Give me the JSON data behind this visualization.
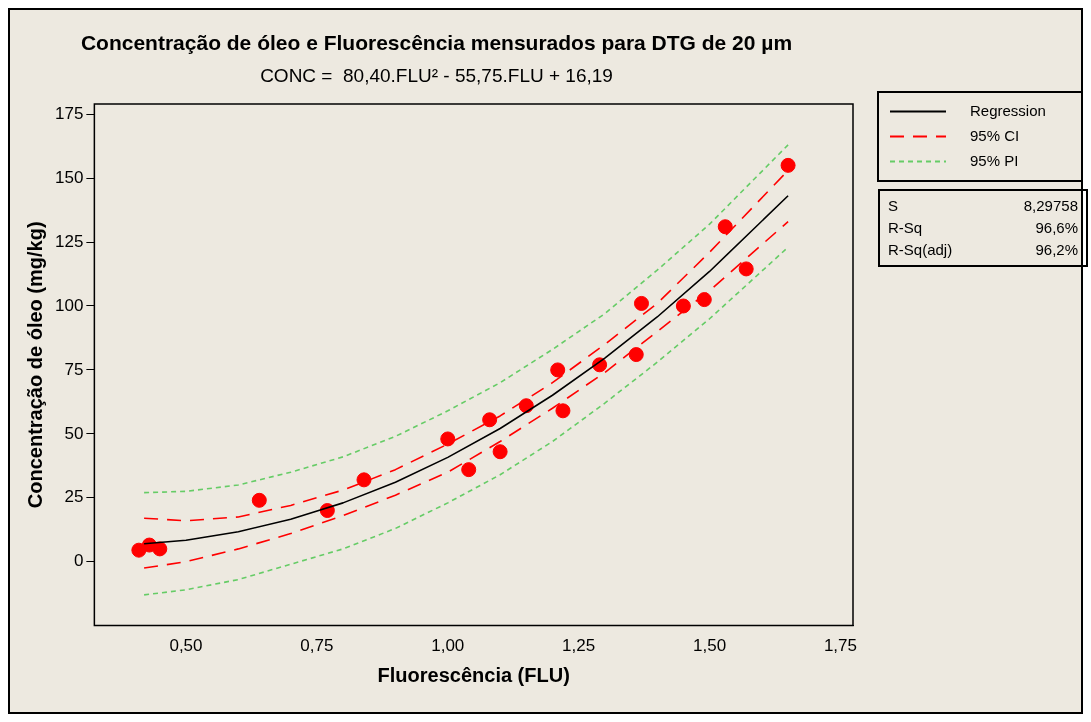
{
  "chart_data": {
    "type": "scatter",
    "title": "Concentração de óleo e Fluorescência mensurados para DTG de 20 µm",
    "subtitle": "CONC =  80,40.FLU² - 55,75.FLU + 16,19",
    "xlabel": "Fluorescência (FLU)",
    "ylabel": "Concentração de óleo (mg/kg)",
    "xlim": [
      0.325,
      1.774
    ],
    "xticks": [
      {
        "value": 0.5,
        "label": "0,50"
      },
      {
        "value": 0.75,
        "label": "0,75"
      },
      {
        "value": 1.0,
        "label": "1,00"
      },
      {
        "value": 1.25,
        "label": "1,25"
      },
      {
        "value": 1.5,
        "label": "1,50"
      },
      {
        "value": 1.75,
        "label": "1,75"
      }
    ],
    "ylim": [
      -25,
      179
    ],
    "yticks": [
      0,
      25,
      50,
      75,
      100,
      125,
      150,
      175
    ],
    "grid": false,
    "legend": "top right",
    "series": [
      {
        "name": "Regression",
        "type": "line",
        "color": "#000000",
        "line_style": "solid",
        "marker": "none",
        "x": [
          0.42,
          0.5,
          0.6,
          0.7,
          0.8,
          0.9,
          1.0,
          1.1,
          1.2,
          1.3,
          1.4,
          1.5,
          1.65
        ],
        "values": [
          7,
          8.4,
          11.7,
          16.6,
          23,
          31.1,
          40.8,
          52.1,
          65.1,
          79.6,
          95.7,
          113.5,
          143.1
        ]
      },
      {
        "name": "95% CI",
        "type": "line",
        "color": "#ff0000",
        "line_style": "dashed",
        "marker": "none",
        "x": [
          0.42,
          0.5,
          0.6,
          0.7,
          0.8,
          0.9,
          1.0,
          1.1,
          1.2,
          1.3,
          1.4,
          1.5,
          1.65
        ],
        "values": [
          17,
          16,
          17.5,
          22,
          28,
          36,
          46,
          57,
          70,
          85,
          101,
          121,
          153
        ]
      },
      {
        "type": "line",
        "color": "#ff0000",
        "line_style": "dashed",
        "marker": "none",
        "x": [
          0.42,
          0.5,
          0.6,
          0.7,
          0.8,
          0.9,
          1.0,
          1.1,
          1.2,
          1.3,
          1.4,
          1.5,
          1.65
        ],
        "values": [
          -2.5,
          0,
          5,
          11,
          18,
          26,
          35,
          47,
          60,
          74,
          90,
          106,
          133
        ]
      },
      {
        "name": "95% PI",
        "type": "line",
        "color": "#66cc66",
        "line_style": "dotted",
        "marker": "none",
        "x": [
          0.42,
          0.5,
          0.6,
          0.7,
          0.8,
          0.9,
          1.0,
          1.1,
          1.2,
          1.3,
          1.4,
          1.5,
          1.65
        ],
        "values": [
          27,
          27.5,
          30,
          35,
          41,
          49,
          59,
          70,
          83,
          97,
          114,
          132,
          163
        ]
      },
      {
        "type": "line",
        "color": "#66cc66",
        "line_style": "dotted",
        "marker": "none",
        "x": [
          0.42,
          0.5,
          0.6,
          0.7,
          0.8,
          0.9,
          1.0,
          1.1,
          1.2,
          1.3,
          1.4,
          1.5,
          1.65
        ],
        "values": [
          -13,
          -11,
          -7,
          -1,
          5,
          13,
          23,
          34,
          47,
          62,
          78,
          95,
          123
        ]
      },
      {
        "type": "scatter",
        "color": "#ff0000",
        "marker": "circle",
        "x": [
          0.41,
          0.43,
          0.45,
          0.64,
          0.77,
          0.84,
          1.0,
          1.04,
          1.08,
          1.1,
          1.15,
          1.21,
          1.22,
          1.29,
          1.36,
          1.37,
          1.45,
          1.49,
          1.53,
          1.57,
          1.65
        ],
        "values": [
          4.5,
          6.5,
          5,
          24,
          20,
          32,
          48,
          36,
          55.5,
          43,
          61,
          75,
          59,
          77,
          81,
          101,
          100,
          102.5,
          131,
          114.5,
          155
        ]
      }
    ],
    "annotations": [
      "S",
      "8,29758",
      "R-Sq",
      "96,6%",
      "R-Sq(adj)",
      "96,2%"
    ]
  }
}
